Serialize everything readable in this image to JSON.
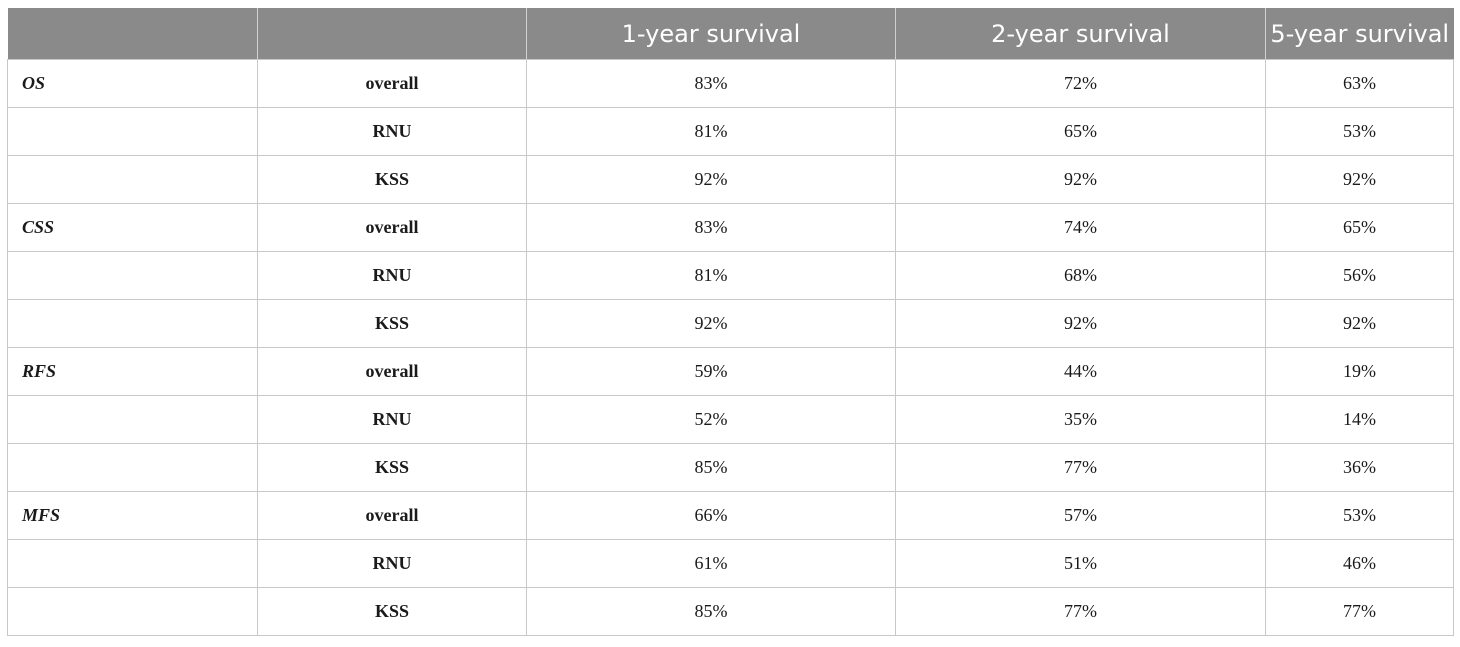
{
  "header": [
    "",
    "",
    "1-year survival",
    "2-year survival",
    "5-year survival"
  ],
  "rows": [
    {
      "group": "OS",
      "sub": "overall",
      "y1": "83%",
      "y2": "72%",
      "y5": "63%"
    },
    {
      "group": "",
      "sub": "RNU",
      "y1": "81%",
      "y2": "65%",
      "y5": "53%"
    },
    {
      "group": "",
      "sub": "KSS",
      "y1": "92%",
      "y2": "92%",
      "y5": "92%"
    },
    {
      "group": "CSS",
      "sub": "overall",
      "y1": "83%",
      "y2": "74%",
      "y5": "65%"
    },
    {
      "group": "",
      "sub": "RNU",
      "y1": "81%",
      "y2": "68%",
      "y5": "56%"
    },
    {
      "group": "",
      "sub": "KSS",
      "y1": "92%",
      "y2": "92%",
      "y5": "92%"
    },
    {
      "group": "RFS",
      "sub": "overall",
      "y1": "59%",
      "y2": "44%",
      "y5": "19%"
    },
    {
      "group": "",
      "sub": "RNU",
      "y1": "52%",
      "y2": "35%",
      "y5": "14%"
    },
    {
      "group": "",
      "sub": "KSS",
      "y1": "85%",
      "y2": "77%",
      "y5": "36%"
    },
    {
      "group": "MFS",
      "sub": "overall",
      "y1": "66%",
      "y2": "57%",
      "y5": "53%"
    },
    {
      "group": "",
      "sub": "RNU",
      "y1": "61%",
      "y2": "51%",
      "y5": "46%"
    },
    {
      "group": "",
      "sub": "KSS",
      "y1": "85%",
      "y2": "77%",
      "y5": "77%"
    }
  ]
}
